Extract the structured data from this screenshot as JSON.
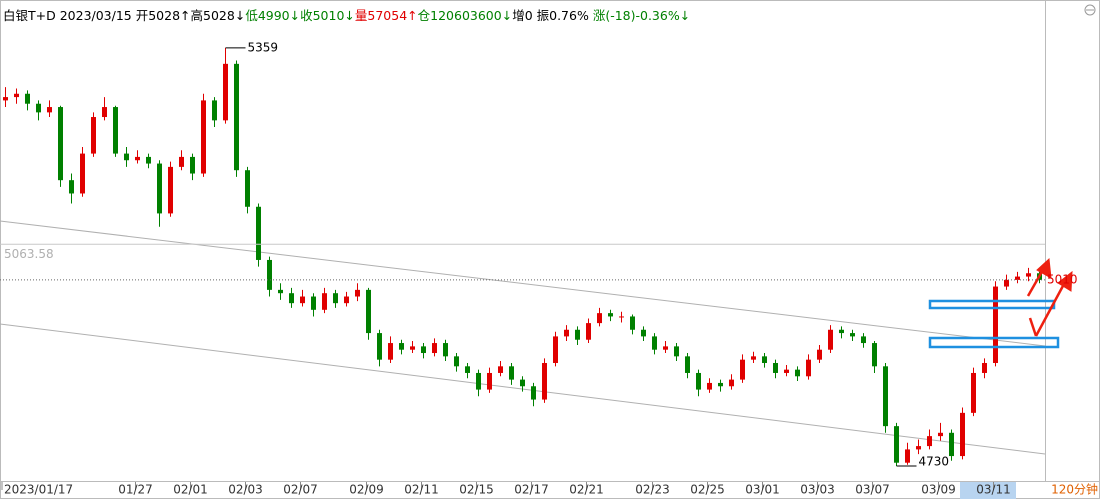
{
  "header": [
    {
      "text": "白银T+D 2023/03/15 ",
      "color": "#000000"
    },
    {
      "text": "开5028↑高5028↓",
      "color": "#000000"
    },
    {
      "text": "低4990↓收5010↓",
      "color": "#008000"
    },
    {
      "text": "量57054↑",
      "color": "#e00000"
    },
    {
      "text": "仓120603600↓",
      "color": "#008000"
    },
    {
      "text": "增0 振0.76% ",
      "color": "#000000"
    },
    {
      "text": "涨(-18)-0.36%↓",
      "color": "#008000"
    }
  ],
  "chart_data": {
    "type": "candlestick",
    "categories": [
      "2023/01/17",
      null,
      null,
      null,
      null,
      null,
      null,
      null,
      null,
      null,
      null,
      null,
      "01/27",
      null,
      null,
      null,
      null,
      "02/01",
      null,
      null,
      null,
      null,
      "02/03",
      null,
      null,
      null,
      null,
      "02/07",
      null,
      null,
      null,
      null,
      null,
      "02/09",
      null,
      null,
      null,
      null,
      "02/11",
      null,
      null,
      null,
      null,
      "02/15",
      null,
      null,
      null,
      null,
      "02/17",
      null,
      null,
      null,
      null,
      "02/21",
      null,
      null,
      null,
      null,
      null,
      "02/23",
      null,
      null,
      null,
      null,
      "02/25",
      null,
      null,
      null,
      null,
      "03/01",
      null,
      null,
      null,
      null,
      "03/03",
      null,
      null,
      null,
      null,
      "03/07",
      null,
      null,
      null,
      null,
      null,
      "03/09",
      null,
      null,
      null,
      null,
      "03/11",
      null,
      null,
      null,
      null
    ],
    "open": [
      5280,
      5285,
      5290,
      5275,
      5262,
      5270,
      5160,
      5140,
      5200,
      5255,
      5270,
      5200,
      5190,
      5195,
      5185,
      5110,
      5180,
      5195,
      5170,
      5280,
      5250,
      5335,
      5175,
      5120,
      5040,
      4995,
      4990,
      4975,
      4985,
      4965,
      4990,
      4975,
      4985,
      4995,
      4930,
      4890,
      4915,
      4905,
      4910,
      4900,
      4915,
      4895,
      4880,
      4870,
      4845,
      4870,
      4880,
      4860,
      4850,
      4830,
      4885,
      4925,
      4935,
      4920,
      4945,
      4960,
      4955,
      4955,
      4935,
      4925,
      4905,
      4910,
      4895,
      4870,
      4845,
      4855,
      4850,
      4860,
      4890,
      4895,
      4885,
      4870,
      4875,
      4865,
      4890,
      4905,
      4935,
      4930,
      4925,
      4915,
      4880,
      4790,
      4735,
      4755,
      4760,
      4775,
      4780,
      4745,
      4810,
      4870,
      4885,
      5000,
      5010,
      5015,
      5020
    ],
    "high": [
      5300,
      5298,
      5295,
      5280,
      5280,
      5272,
      5170,
      5210,
      5262,
      5285,
      5272,
      5210,
      5205,
      5200,
      5190,
      5188,
      5205,
      5200,
      5290,
      5285,
      5359,
      5340,
      5180,
      5125,
      5045,
      5005,
      4998,
      4995,
      4990,
      4998,
      4995,
      4992,
      5005,
      4998,
      4935,
      4925,
      4920,
      4918,
      4915,
      4922,
      4920,
      4900,
      4885,
      4875,
      4878,
      4888,
      4885,
      4865,
      4855,
      4892,
      4932,
      4942,
      4940,
      4952,
      4968,
      4965,
      4962,
      4958,
      4940,
      4930,
      4918,
      4915,
      4900,
      4875,
      4862,
      4860,
      4868,
      4898,
      4902,
      4900,
      4890,
      4882,
      4880,
      4898,
      4912,
      4942,
      4940,
      4935,
      4930,
      4918,
      4885,
      4795,
      4765,
      4770,
      4785,
      4795,
      4785,
      4818,
      4878,
      4892,
      5008,
      5018,
      5022,
      5028,
      5025
    ],
    "low": [
      5270,
      5275,
      5265,
      5250,
      5255,
      5150,
      5125,
      5135,
      5195,
      5250,
      5195,
      5180,
      5185,
      5178,
      5090,
      5105,
      5175,
      5160,
      5165,
      5240,
      5245,
      5165,
      5110,
      5030,
      4985,
      4980,
      4968,
      4970,
      4955,
      4960,
      4968,
      4970,
      4978,
      4920,
      4880,
      4885,
      4898,
      4900,
      4892,
      4895,
      4888,
      4872,
      4862,
      4835,
      4840,
      4865,
      4852,
      4842,
      4820,
      4825,
      4880,
      4918,
      4912,
      4915,
      4940,
      4948,
      4946,
      4928,
      4918,
      4898,
      4900,
      4888,
      4862,
      4835,
      4840,
      4842,
      4845,
      4855,
      4885,
      4878,
      4862,
      4865,
      4858,
      4860,
      4885,
      4900,
      4922,
      4918,
      4908,
      4870,
      4780,
      4730,
      4732,
      4748,
      4755,
      4768,
      4738,
      4740,
      4805,
      4862,
      4880,
      4995,
      5005,
      5008,
      5005
    ],
    "close": [
      5285,
      5290,
      5275,
      5262,
      5270,
      5160,
      5140,
      5200,
      5255,
      5270,
      5200,
      5190,
      5195,
      5185,
      5110,
      5180,
      5195,
      5170,
      5280,
      5250,
      5335,
      5175,
      5120,
      5040,
      4995,
      4990,
      4975,
      4985,
      4965,
      4990,
      4975,
      4985,
      4995,
      4930,
      4890,
      4915,
      4905,
      4910,
      4900,
      4915,
      4895,
      4880,
      4870,
      4845,
      4870,
      4880,
      4860,
      4850,
      4830,
      4885,
      4925,
      4935,
      4920,
      4945,
      4960,
      4955,
      4955,
      4935,
      4925,
      4905,
      4910,
      4895,
      4870,
      4845,
      4855,
      4850,
      4860,
      4890,
      4895,
      4885,
      4870,
      4875,
      4865,
      4890,
      4905,
      4935,
      4930,
      4925,
      4915,
      4880,
      4790,
      4735,
      4755,
      4760,
      4775,
      4780,
      4745,
      4810,
      4870,
      4885,
      5000,
      5010,
      5015,
      5020,
      5010
    ],
    "up_color": "#e00000",
    "down_color": "#008000",
    "ylim": [
      4712,
      5419
    ],
    "reference_line": 5063.58,
    "last_price": 5010,
    "high_marker": 5359,
    "low_marker": 4730,
    "period": "120分钟"
  }
}
